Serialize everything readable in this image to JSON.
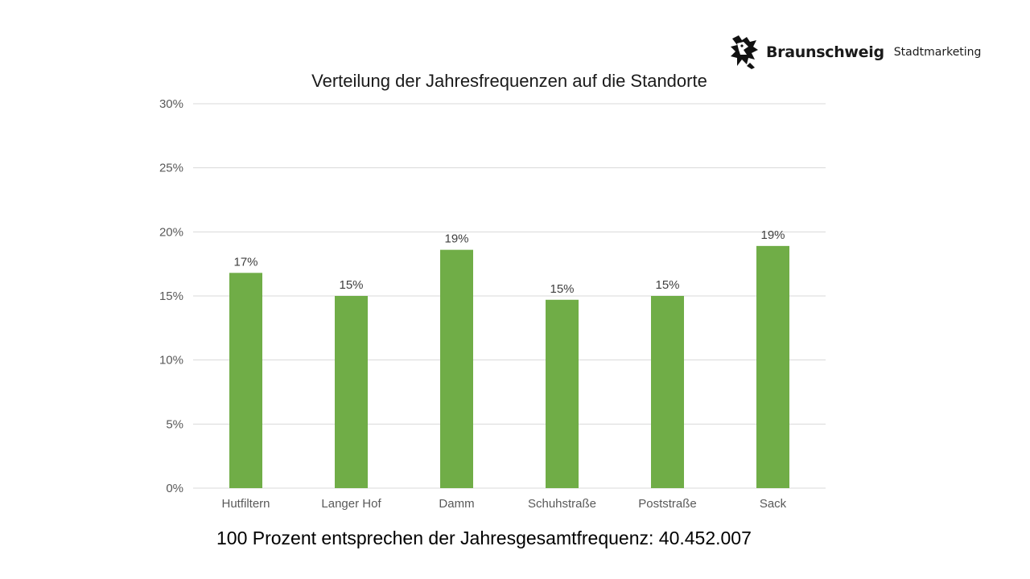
{
  "logo": {
    "brand": "Braunschweig",
    "sub": "Stadtmarketing",
    "icon": "lion-icon"
  },
  "footnote": "100 Prozent entsprechen der Jahresgesamtfrequenz: 40.452.007",
  "colors": {
    "bar": "#70ad47",
    "grid": "#d9d9d9",
    "text": "#595959"
  },
  "chart_data": {
    "type": "bar",
    "title": "Verteilung der Jahresfrequenzen auf die Standorte",
    "xlabel": "",
    "ylabel": "",
    "categories": [
      "Hutfiltern",
      "Langer Hof",
      "Damm",
      "Schuhstraße",
      "Poststraße",
      "Sack"
    ],
    "values": [
      16.8,
      15.0,
      18.6,
      14.7,
      15.0,
      18.9
    ],
    "data_labels": [
      "17%",
      "15%",
      "19%",
      "15%",
      "15%",
      "19%"
    ],
    "ylim": [
      0,
      30
    ],
    "y_ticks": [
      0,
      5,
      10,
      15,
      20,
      25,
      30
    ],
    "y_tick_labels": [
      "0%",
      "5%",
      "10%",
      "15%",
      "20%",
      "25%",
      "30%"
    ],
    "grid": true,
    "legend": "none"
  }
}
